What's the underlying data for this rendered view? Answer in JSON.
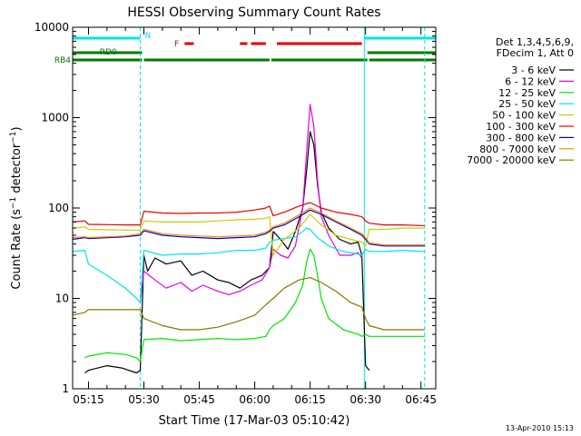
{
  "chart_data": {
    "type": "line",
    "title": "HESSI Observing Summary Count Rates",
    "xlabel": "Start Time (17-Mar-03 05:10:42)",
    "ylabel": "Count Rate (s⁻¹ detector⁻¹)",
    "ylabel_parts": {
      "main": "Count Rate (s",
      "sup1": "−1",
      "mid": " detector",
      "sup2": "−1",
      "end": ")"
    },
    "y_scale": "log",
    "ylim": [
      1,
      10000
    ],
    "xlim": [
      "05:10:42",
      "06:49:00"
    ],
    "x_ticks": [
      "05:15",
      "05:30",
      "05:45",
      "06:00",
      "06:15",
      "06:30",
      "06:45"
    ],
    "y_ticks": [
      "1",
      "10",
      "100",
      "1000",
      "10000"
    ],
    "footer_date": "13-Apr-2010 15:13",
    "legend_header": [
      "Det 1,3,4,5,6,9,",
      "FDecim 1, Att 0"
    ],
    "legend_position": "right",
    "flags": [
      {
        "name": "N",
        "color": "#00e5e5",
        "row": 1,
        "segments": [
          [
            "05:10:42",
            "05:29:00"
          ],
          [
            "06:29:40",
            "06:49:00"
          ]
        ]
      },
      {
        "name": "F",
        "color": "#e00000",
        "row": 2,
        "segments": [
          [
            "05:41:00",
            "05:43:30"
          ],
          [
            "05:56:00",
            "05:58:00"
          ],
          [
            "05:59:00",
            "06:03:00"
          ],
          [
            "06:06:00",
            "06:29:00"
          ]
        ]
      },
      {
        "name": "RD0",
        "color": "#007a00",
        "row": 3,
        "segments": [
          [
            "05:10:42",
            "05:29:30"
          ],
          [
            "06:30:30",
            "06:49:00"
          ]
        ]
      },
      {
        "name": "RB4",
        "color": "#007a00",
        "row": 4,
        "segments": [
          [
            "05:10:42",
            "05:29:30"
          ],
          [
            "05:30:00",
            "06:04:00"
          ],
          [
            "06:04:30",
            "06:30:30"
          ],
          [
            "06:31:00",
            "06:49:00"
          ]
        ]
      }
    ],
    "series": [
      {
        "name": "3 - 6 keV",
        "color": "#000000",
        "x": [
          "05:14:00",
          "05:15:00",
          "05:20:00",
          "05:24:00",
          "05:28:00",
          "05:29:00",
          "05:30:00",
          "05:31:00",
          "05:33:00",
          "05:36:00",
          "05:40:00",
          "05:43:00",
          "05:46:00",
          "05:50:00",
          "05:53:00",
          "05:56:00",
          "05:59:00",
          "06:02:00",
          "06:04:00",
          "06:05:00",
          "06:07:00",
          "06:09:00",
          "06:11:00",
          "06:13:00",
          "06:14:00",
          "06:15:00",
          "06:16:00",
          "06:17:00",
          "06:18:00",
          "06:20:00",
          "06:23:00",
          "06:26:00",
          "06:28:00",
          "06:29:00",
          "06:30:00",
          "06:31:00"
        ],
        "y": [
          1.5,
          1.6,
          1.8,
          1.7,
          1.5,
          1.6,
          30,
          20,
          28,
          24,
          26,
          18,
          20,
          16,
          15,
          13,
          16,
          18,
          22,
          55,
          45,
          35,
          55,
          100,
          250,
          700,
          500,
          180,
          90,
          60,
          45,
          40,
          42,
          30,
          1.8,
          1.6
        ]
      },
      {
        "name": "6 - 12 keV",
        "color": "#e600e6",
        "x": [
          "05:29:00",
          "05:30:00",
          "05:33:00",
          "05:36:00",
          "05:40:00",
          "05:43:00",
          "05:46:00",
          "05:50:00",
          "05:53:00",
          "05:56:00",
          "05:59:00",
          "06:02:00",
          "06:04:00",
          "06:05:00",
          "06:07:00",
          "06:09:00",
          "06:11:00",
          "06:13:00",
          "06:14:00",
          "06:15:00",
          "06:16:00",
          "06:17:00",
          "06:18:00",
          "06:20:00",
          "06:23:00",
          "06:26:00",
          "06:28:00",
          "06:29:00"
        ],
        "y": [
          9,
          20,
          16,
          13,
          15,
          12,
          14,
          12,
          11,
          12,
          14,
          16,
          22,
          35,
          30,
          28,
          38,
          100,
          400,
          1400,
          800,
          200,
          80,
          50,
          30,
          30,
          32,
          28
        ]
      },
      {
        "name": "12 - 25 keV",
        "color": "#00e600",
        "x": [
          "05:14:00",
          "05:15:00",
          "05:20:00",
          "05:25:00",
          "05:28:00",
          "05:29:00",
          "05:30:00",
          "05:35:00",
          "05:40:00",
          "05:45:00",
          "05:50:00",
          "05:55:00",
          "06:00:00",
          "06:03:00",
          "06:04:00",
          "06:05:00",
          "06:08:00",
          "06:11:00",
          "06:13:00",
          "06:14:00",
          "06:15:00",
          "06:16:00",
          "06:17:00",
          "06:18:00",
          "06:20:00",
          "06:24:00",
          "06:28:00",
          "06:29:00",
          "06:30:00",
          "06:31:00",
          "06:35:00",
          "06:40:00",
          "06:45:00",
          "06:46:00"
        ],
        "y": [
          2.2,
          2.3,
          2.5,
          2.4,
          2.2,
          2.0,
          3.5,
          3.6,
          3.4,
          3.5,
          3.6,
          3.5,
          3.6,
          3.8,
          4.5,
          5,
          6,
          9,
          14,
          25,
          35,
          30,
          18,
          10,
          6,
          4.5,
          4,
          3.8,
          4,
          3.8,
          3.8,
          3.8,
          3.8,
          3.8
        ]
      },
      {
        "name": "25 - 50 keV",
        "color": "#00e5e5",
        "x": [
          "05:10:42",
          "05:14:00",
          "05:15:00",
          "05:20:00",
          "05:25:00",
          "05:28:00",
          "05:29:00",
          "05:30:00",
          "05:35:00",
          "05:40:00",
          "05:45:00",
          "05:50:00",
          "05:55:00",
          "06:00:00",
          "06:03:00",
          "06:04:00",
          "06:05:00",
          "06:08:00",
          "06:11:00",
          "06:13:00",
          "06:14:00",
          "06:15:00",
          "06:16:00",
          "06:17:00",
          "06:18:00",
          "06:20:00",
          "06:24:00",
          "06:28:00",
          "06:29:00",
          "06:30:00",
          "06:31:00",
          "06:35:00",
          "06:40:00",
          "06:45:00",
          "06:46:00"
        ],
        "y": [
          33,
          34,
          24,
          18,
          13,
          10,
          9,
          34,
          30,
          31,
          31,
          32,
          34,
          34,
          36,
          42,
          44,
          46,
          48,
          55,
          60,
          58,
          52,
          47,
          44,
          38,
          33,
          31,
          30,
          35,
          33,
          33,
          34,
          33,
          33
        ]
      },
      {
        "name": "50 - 100 keV",
        "color": "#cccc00",
        "x": [
          "05:10:42",
          "05:14:00",
          "05:15:00",
          "05:25:00",
          "05:29:00",
          "05:30:00",
          "05:35:00",
          "05:40:00",
          "05:45:00",
          "05:50:00",
          "05:55:00",
          "06:00:00",
          "06:03:00",
          "06:04:00",
          "06:05:00",
          "06:08:00",
          "06:12:00",
          "06:15:00",
          "06:18:00",
          "06:22:00",
          "06:26:00",
          "06:29:00",
          "06:30:00",
          "06:31:00",
          "06:35:00",
          "06:40:00",
          "06:45:00",
          "06:46:00"
        ],
        "y": [
          60,
          62,
          58,
          57,
          57,
          72,
          70,
          70,
          70,
          72,
          74,
          75,
          77,
          80,
          30,
          45,
          60,
          85,
          65,
          50,
          45,
          42,
          38,
          58,
          58,
          60,
          60,
          60
        ]
      },
      {
        "name": "100 - 300 keV",
        "color": "#e60000",
        "x": [
          "05:10:42",
          "05:14:00",
          "05:15:00",
          "05:25:00",
          "05:29:00",
          "05:30:00",
          "05:35:00",
          "05:40:00",
          "05:45:00",
          "05:50:00",
          "05:55:00",
          "06:00:00",
          "06:03:00",
          "06:04:00",
          "06:05:00",
          "06:08:00",
          "06:12:00",
          "06:15:00",
          "06:18:00",
          "06:22:00",
          "06:26:00",
          "06:29:00",
          "06:30:00",
          "06:31:00",
          "06:35:00",
          "06:40:00",
          "06:45:00",
          "06:46:00"
        ],
        "y": [
          70,
          72,
          66,
          65,
          65,
          92,
          88,
          87,
          88,
          88,
          90,
          95,
          100,
          105,
          82,
          90,
          105,
          115,
          100,
          90,
          85,
          80,
          72,
          68,
          65,
          65,
          64,
          64
        ]
      },
      {
        "name": "300 - 800 keV",
        "color": "#0000cc",
        "x": [
          "05:10:42",
          "05:14:00",
          "05:15:00",
          "05:25:00",
          "05:29:00",
          "05:30:00",
          "05:35:00",
          "05:40:00",
          "05:45:00",
          "05:50:00",
          "05:55:00",
          "06:00:00",
          "06:03:00",
          "06:04:00",
          "06:05:00",
          "06:08:00",
          "06:12:00",
          "06:15:00",
          "06:18:00",
          "06:22:00",
          "06:26:00",
          "06:29:00",
          "06:30:00",
          "06:31:00",
          "06:35:00",
          "06:40:00",
          "06:45:00",
          "06:46:00"
        ],
        "y": [
          45,
          47,
          46,
          48,
          50,
          56,
          50,
          48,
          47,
          46,
          47,
          48,
          52,
          55,
          60,
          65,
          80,
          95,
          85,
          70,
          58,
          50,
          45,
          40,
          38,
          38,
          38,
          38
        ]
      },
      {
        "name": "800 - 7000 keV",
        "color": "#ff8c00",
        "x": [
          "05:10:42",
          "05:14:00",
          "05:15:00",
          "05:25:00",
          "05:29:00",
          "05:30:00",
          "05:35:00",
          "05:40:00",
          "05:45:00",
          "05:50:00",
          "05:55:00",
          "06:00:00",
          "06:03:00",
          "06:04:00",
          "06:05:00",
          "06:08:00",
          "06:12:00",
          "06:15:00",
          "06:18:00",
          "06:22:00",
          "06:26:00",
          "06:29:00",
          "06:30:00",
          "06:31:00",
          "06:35:00",
          "06:40:00",
          "06:45:00",
          "06:46:00"
        ],
        "y": [
          47,
          48,
          47,
          49,
          52,
          58,
          52,
          50,
          49,
          48,
          49,
          50,
          54,
          57,
          62,
          68,
          84,
          100,
          88,
          72,
          60,
          52,
          47,
          41,
          39,
          39,
          39,
          39
        ]
      },
      {
        "name": "7000 - 20000 keV",
        "color": "#8b7500",
        "x": [
          "05:10:42",
          "05:14:00",
          "05:15:00",
          "05:20:00",
          "05:25:00",
          "05:29:00",
          "05:30:00",
          "05:35:00",
          "05:40:00",
          "05:45:00",
          "05:50:00",
          "05:55:00",
          "06:00:00",
          "06:03:00",
          "06:05:00",
          "06:08:00",
          "06:12:00",
          "06:15:00",
          "06:18:00",
          "06:22:00",
          "06:26:00",
          "06:29:00",
          "06:30:00",
          "06:31:00",
          "06:35:00",
          "06:40:00",
          "06:45:00",
          "06:46:00"
        ],
        "y": [
          6.5,
          7,
          7.5,
          7.5,
          7.5,
          7.5,
          6,
          5,
          4.5,
          4.5,
          4.8,
          5.5,
          6.5,
          8.5,
          10,
          13,
          16,
          17,
          15,
          12,
          9,
          8,
          6,
          5,
          4.5,
          4.5,
          4.5,
          4.5
        ]
      }
    ]
  }
}
